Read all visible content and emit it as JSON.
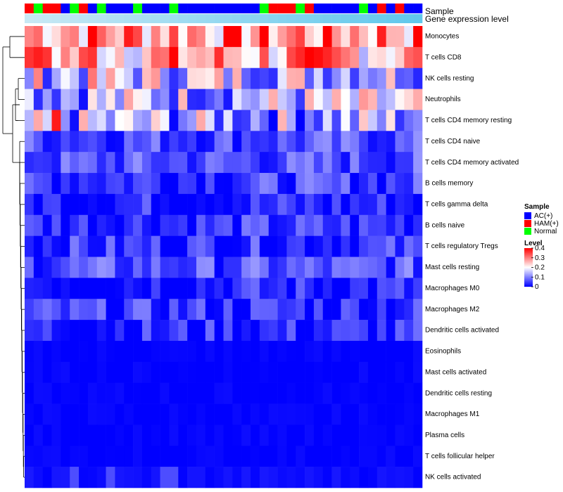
{
  "chart_data": {
    "type": "heatmap",
    "title": "",
    "annotation_tracks": [
      "Sample",
      "Gene expression level"
    ],
    "sample_groups": [
      "AC(+)",
      "HAM(+)",
      "Normal"
    ],
    "sample_group_colors": {
      "AC(+)": "#0000FF",
      "HAM(+)": "#FF0000",
      "Normal": "#00FF00"
    },
    "samples_group_sequence": [
      "HAM(+)",
      "Normal",
      "HAM(+)",
      "HAM(+)",
      "AC(+)",
      "Normal",
      "HAM(+)",
      "AC(+)",
      "Normal",
      "AC(+)",
      "AC(+)",
      "AC(+)",
      "Normal",
      "AC(+)",
      "AC(+)",
      "AC(+)",
      "Normal",
      "AC(+)",
      "AC(+)",
      "AC(+)",
      "AC(+)",
      "AC(+)",
      "AC(+)",
      "AC(+)",
      "AC(+)",
      "AC(+)",
      "Normal",
      "HAM(+)",
      "HAM(+)",
      "HAM(+)",
      "Normal",
      "HAM(+)",
      "AC(+)",
      "AC(+)",
      "AC(+)",
      "AC(+)",
      "AC(+)",
      "Normal",
      "AC(+)",
      "HAM(+)",
      "AC(+)",
      "HAM(+)",
      "AC(+)",
      "AC(+)"
    ],
    "expression_level_track_color": "#87CEEB",
    "rows": [
      "Monocytes",
      "T cells CD8",
      "NK cells resting",
      "Neutrophils",
      "T cells CD4 memory resting",
      "T cells CD4 naive",
      "T cells CD4 memory activated",
      "B cells memory",
      "T cells gamma delta",
      "B cells naive",
      "T cells regulatory  Tregs",
      "Mast cells resting",
      "Macrophages M0",
      "Macrophages M2",
      "Dendritic cells activated",
      "Eosinophils",
      "Mast cells activated",
      "Dendritic cells resting",
      "Macrophages M1",
      "Plasma cells",
      "T cells follicular helper",
      "NK cells activated"
    ],
    "row_base_levels": [
      0.3,
      0.27,
      0.17,
      0.15,
      0.13,
      0.06,
      0.06,
      0.05,
      0.03,
      0.04,
      0.04,
      0.06,
      0.03,
      0.04,
      0.03,
      0.0,
      0.0,
      0.0,
      0.0,
      0.0,
      0.0,
      0.01
    ],
    "legend": {
      "sample_title": "Sample",
      "level_title": "Level",
      "level_ticks": [
        0.4,
        0.3,
        0.2,
        0.1,
        0
      ],
      "level_tick_labels": [
        "0.4",
        "0.3",
        "0.2",
        "0.1",
        "0"
      ],
      "level_range": [
        0,
        0.4
      ],
      "color_low": "#0000FF",
      "color_mid": "#FFFFFF",
      "color_high": "#FF0000",
      "placement": "right"
    }
  }
}
